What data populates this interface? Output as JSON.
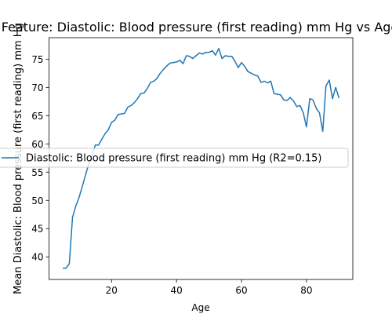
{
  "colors": {
    "line": "#1f77b4",
    "axes": "#000000",
    "background": "#ffffff"
  },
  "chart_data": {
    "type": "line",
    "title": "Feature: Diastolic: Blood pressure (first reading) mm Hg vs Age",
    "xlabel": "Age",
    "ylabel": "Mean Diastolic: Blood pressure (first reading) mm Hg",
    "xlim": [
      0.75,
      94.25
    ],
    "ylim": [
      36,
      78.8
    ],
    "grid": false,
    "legend_loc": "center-left",
    "x_ticks": [
      20,
      40,
      60,
      80
    ],
    "y_ticks": [
      40,
      45,
      50,
      55,
      60,
      65,
      70,
      75
    ],
    "x_tick_labels": [
      "20",
      "40",
      "60",
      "80"
    ],
    "y_tick_labels": [
      "40",
      "45",
      "50",
      "55",
      "60",
      "65",
      "70",
      "75"
    ],
    "series": [
      {
        "name": "Diastolic: Blood pressure (first reading) mm Hg (R2=0.15)",
        "x": [
          5,
          6,
          7,
          8,
          9,
          10,
          11,
          12,
          13,
          14,
          15,
          16,
          17,
          18,
          19,
          20,
          21,
          22,
          23,
          24,
          25,
          26,
          27,
          28,
          29,
          30,
          31,
          32,
          33,
          34,
          35,
          36,
          37,
          38,
          39,
          40,
          41,
          42,
          43,
          44,
          45,
          46,
          47,
          48,
          49,
          50,
          51,
          52,
          53,
          54,
          55,
          56,
          57,
          58,
          59,
          60,
          61,
          62,
          63,
          64,
          65,
          66,
          67,
          68,
          69,
          70,
          71,
          72,
          73,
          74,
          75,
          76,
          77,
          78,
          79,
          80,
          81,
          82,
          83,
          84,
          85,
          86,
          87,
          88,
          89,
          90
        ],
        "y": [
          38,
          38,
          38.8,
          47,
          49,
          50.5,
          52.5,
          54.5,
          56.5,
          58,
          59.8,
          59.8,
          60.8,
          61.8,
          62.5,
          63.8,
          64.2,
          65.2,
          65.3,
          65.4,
          66.5,
          66.8,
          67.3,
          68,
          68.9,
          69,
          69.8,
          70.9,
          71.1,
          71.6,
          72.5,
          73.2,
          73.8,
          74.3,
          74.4,
          74.5,
          74.8,
          74.2,
          75.6,
          75.5,
          75.1,
          75.6,
          76.1,
          75.9,
          76.2,
          76.2,
          76.5,
          75.7,
          76.9,
          75.1,
          75.6,
          75.5,
          75.5,
          74.6,
          73.5,
          74.4,
          73.7,
          72.8,
          72.5,
          72.2,
          72,
          70.9,
          71.1,
          70.8,
          71.1,
          68.9,
          68.8,
          68.7,
          67.8,
          67.7,
          68.2,
          67.6,
          66.6,
          66.8,
          65.5,
          63,
          68,
          67.8,
          66.3,
          65.5,
          62.2,
          70.3,
          71.3,
          68,
          70,
          68.1
        ]
      }
    ]
  }
}
